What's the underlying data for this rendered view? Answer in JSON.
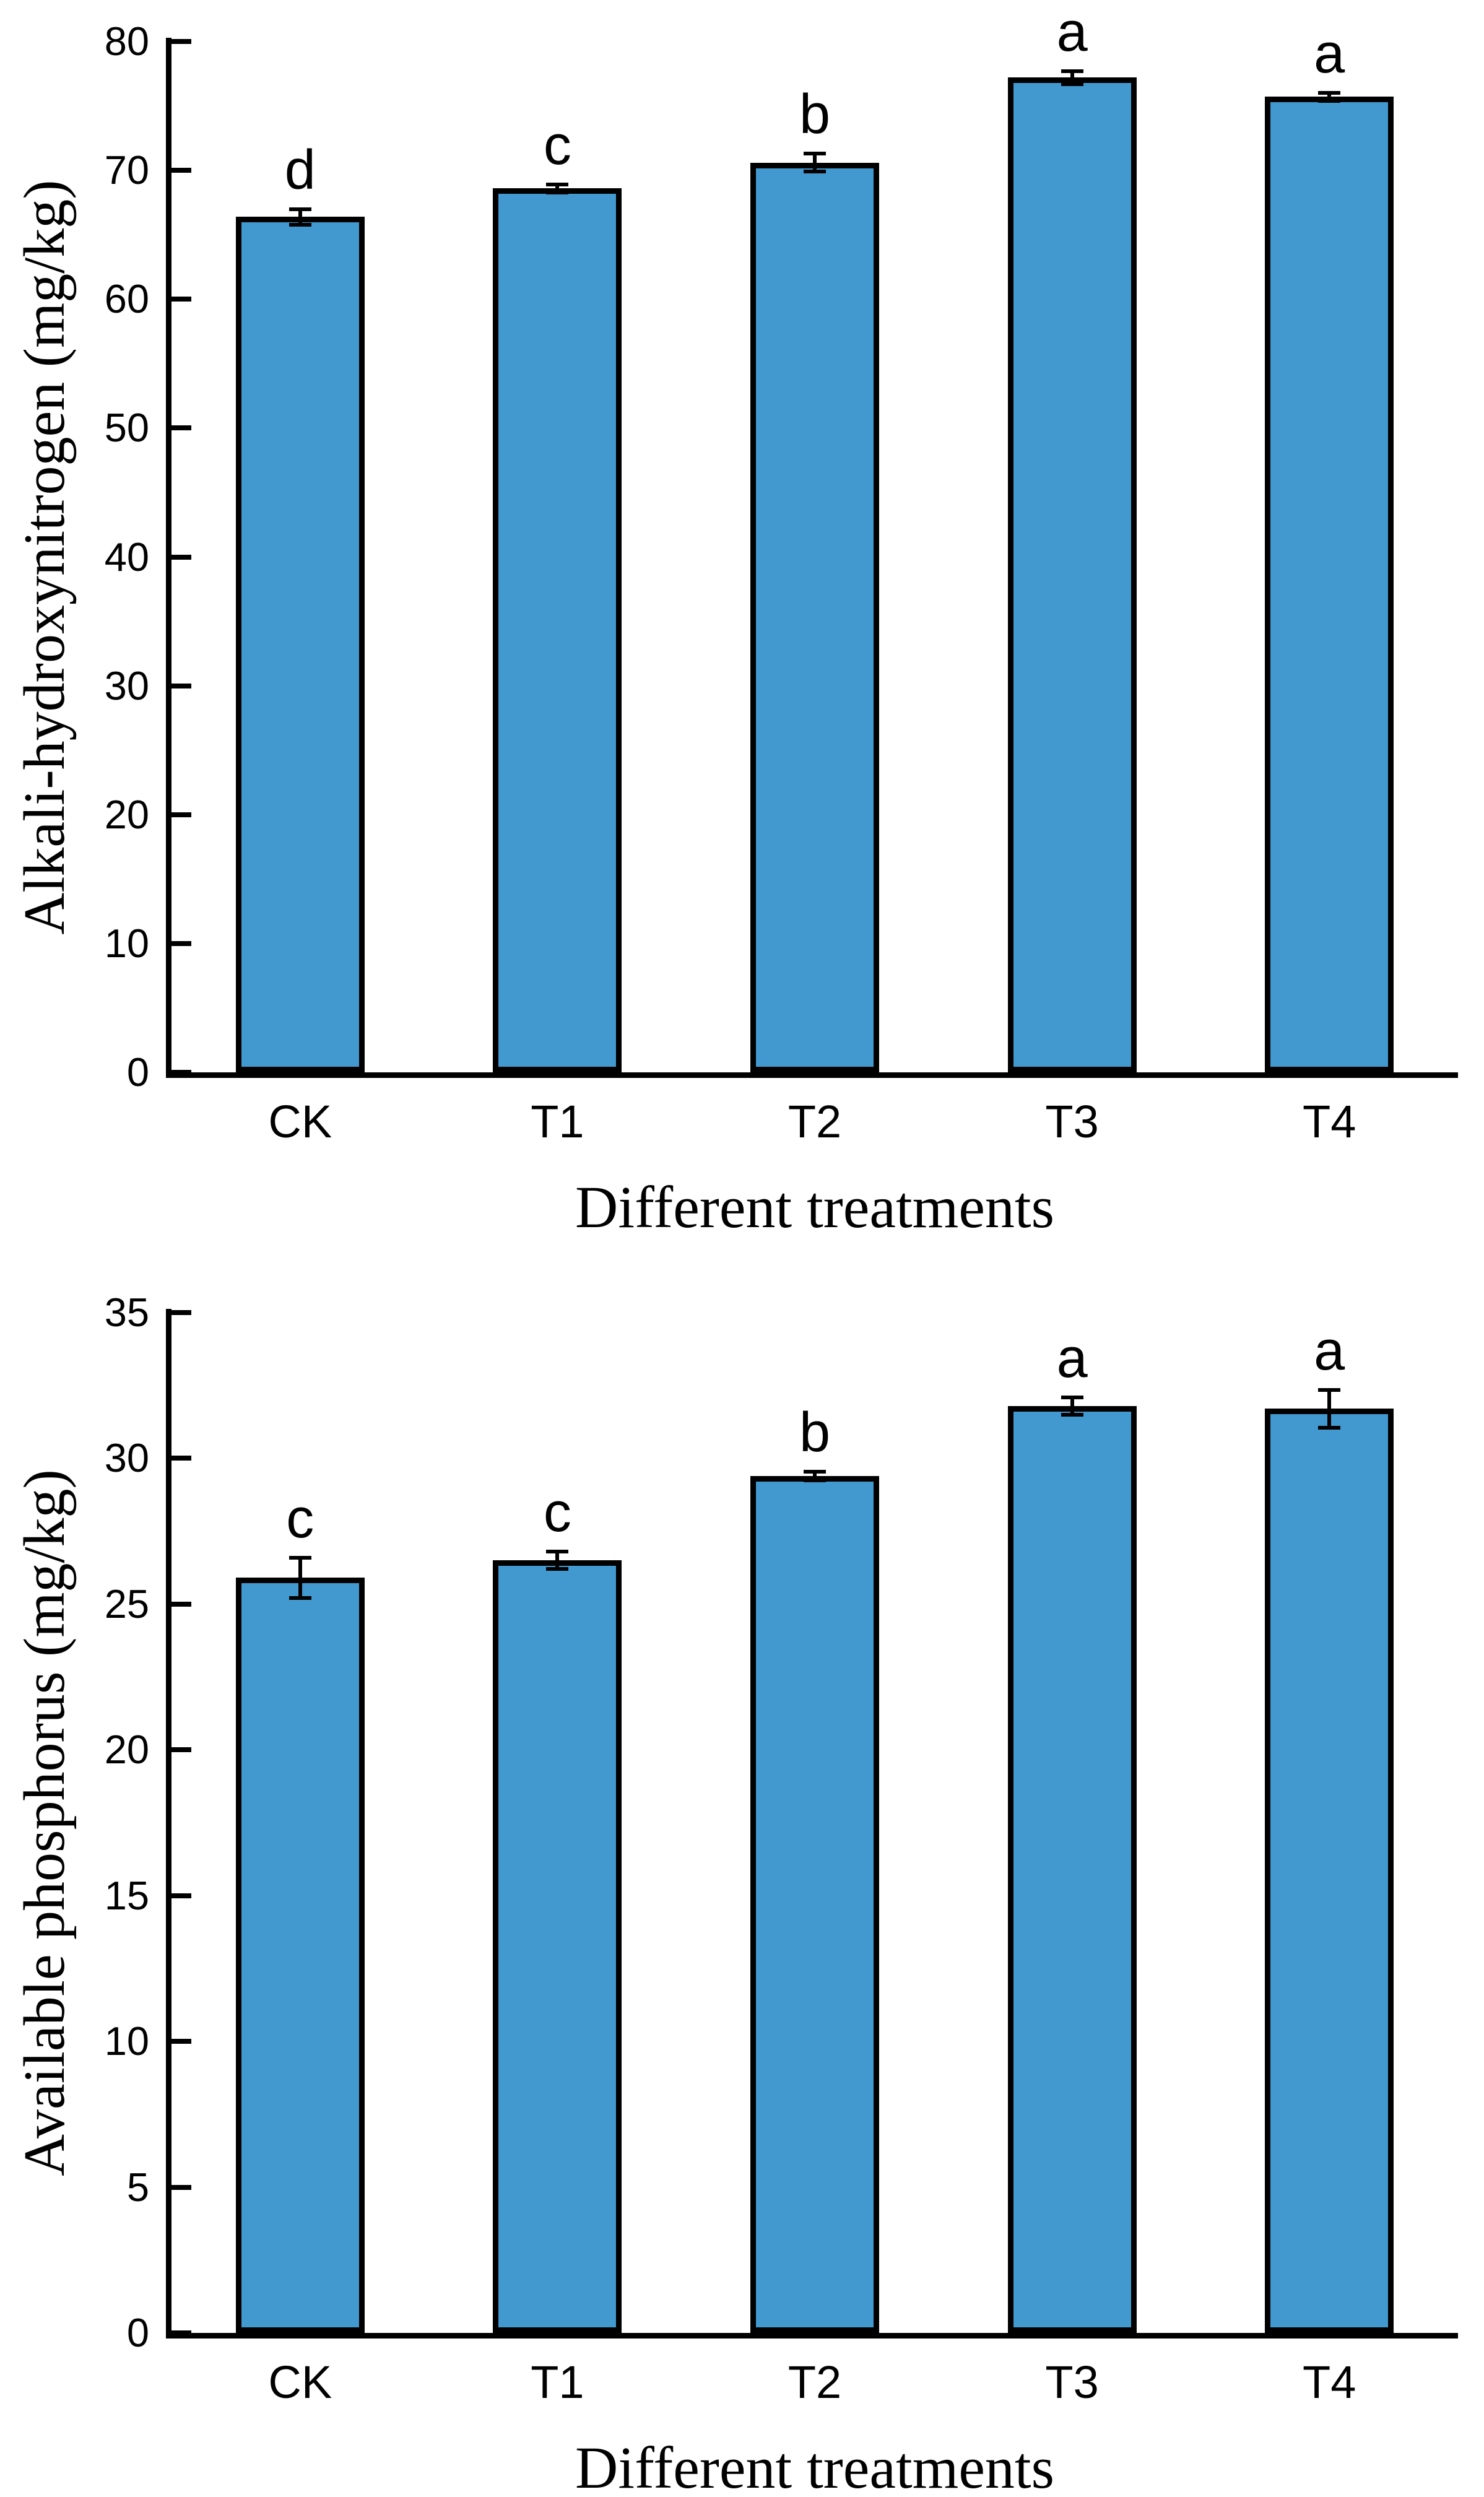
{
  "page": {
    "background": "#FFFFFF"
  },
  "colors": {
    "bar_fill": "#4299CF",
    "bar_edge": "#000000",
    "axis": "#000000",
    "text": "#000000"
  },
  "chart_data": [
    {
      "id": "alkali-hydroxynitrogen",
      "type": "bar",
      "title": "",
      "xlabel": "Different treatments",
      "ylabel": "Alkali-hydroxynitrogen (mg/kg)",
      "categories": [
        "CK",
        "T1",
        "T2",
        "T3",
        "T4"
      ],
      "values": [
        66.4,
        68.6,
        70.6,
        77.2,
        75.7
      ],
      "errors": [
        0.6,
        0.3,
        0.7,
        0.5,
        0.3
      ],
      "sig_letters": [
        "d",
        "c",
        "b",
        "a",
        "a"
      ],
      "ylim": [
        0,
        80
      ],
      "ytick_step": 10,
      "ytick_labels": [
        "0",
        "10",
        "20",
        "30",
        "40",
        "50",
        "60",
        "70",
        "80"
      ],
      "grid": false,
      "legend": null,
      "bar_color": "#4299CF",
      "bar_edge_color": "#000000"
    },
    {
      "id": "available-phosphorus",
      "type": "bar",
      "title": "",
      "xlabel": "Different treatments",
      "ylabel": "Available phosphorus (mg/kg)",
      "categories": [
        "CK",
        "T1",
        "T2",
        "T3",
        "T4"
      ],
      "values": [
        25.9,
        26.5,
        29.4,
        31.8,
        31.7
      ],
      "errors": [
        0.7,
        0.3,
        0.15,
        0.3,
        0.65
      ],
      "sig_letters": [
        "c",
        "c",
        "b",
        "a",
        "a"
      ],
      "ylim": [
        0,
        35
      ],
      "ytick_step": 5,
      "ytick_labels": [
        "0",
        "5",
        "10",
        "15",
        "20",
        "25",
        "30",
        "35"
      ],
      "grid": false,
      "legend": null,
      "bar_color": "#4299CF",
      "bar_edge_color": "#000000"
    }
  ]
}
